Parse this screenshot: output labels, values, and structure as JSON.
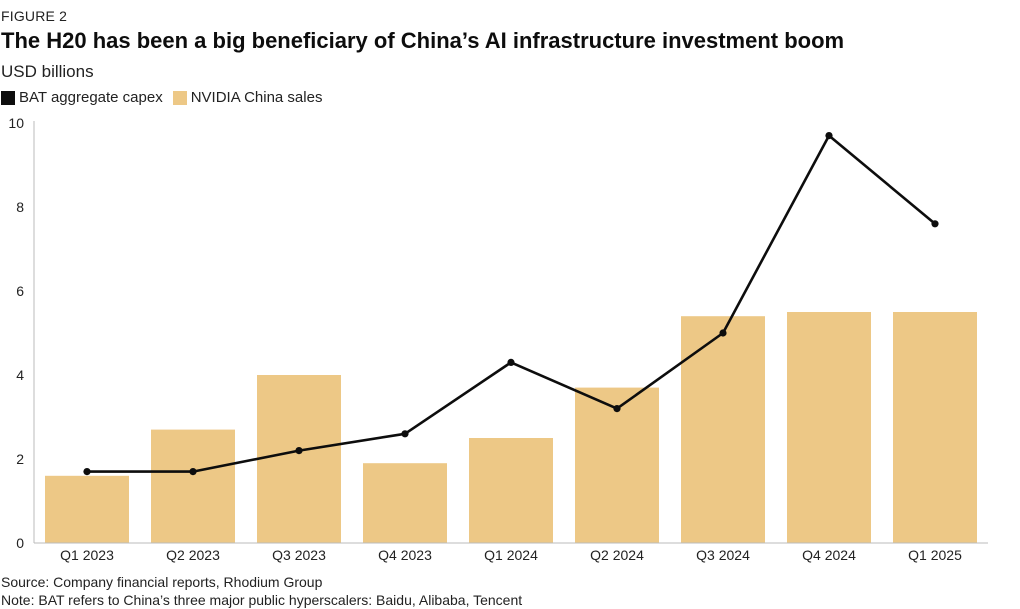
{
  "figure_label": "FIGURE 2",
  "colors": {
    "bar": "#EDC886",
    "line": "#0d0d0d",
    "axis": "#bbbbbb"
  },
  "chart_data": {
    "type": "bar",
    "title": "The H20 has been a big beneficiary of China’s AI infrastructure investment boom",
    "subtitle": "USD billions",
    "ylim": [
      0,
      10
    ],
    "yticks": [
      "0",
      "2",
      "4",
      "6",
      "8",
      "10"
    ],
    "categories": [
      "Q1 2023",
      "Q2 2023",
      "Q3 2023",
      "Q4 2023",
      "Q1 2024",
      "Q2 2024",
      "Q3 2024",
      "Q4 2024",
      "Q1 2025"
    ],
    "series": [
      {
        "name": "NVIDIA China sales",
        "type": "bar",
        "values": [
          1.6,
          2.7,
          4.0,
          1.9,
          2.5,
          3.7,
          5.4,
          5.5,
          5.5
        ]
      },
      {
        "name": "BAT aggregate capex",
        "type": "line",
        "values": [
          1.7,
          1.7,
          2.2,
          2.6,
          4.3,
          3.2,
          5.0,
          9.7,
          7.6
        ]
      }
    ],
    "legend": [
      "BAT aggregate capex",
      "NVIDIA China sales"
    ],
    "legend_position": "top-left"
  },
  "footer": {
    "source": "Source: Company financial reports, Rhodium Group",
    "note": "Note: BAT refers to China’s three major public hyperscalers: Baidu, Alibaba, Tencent"
  }
}
